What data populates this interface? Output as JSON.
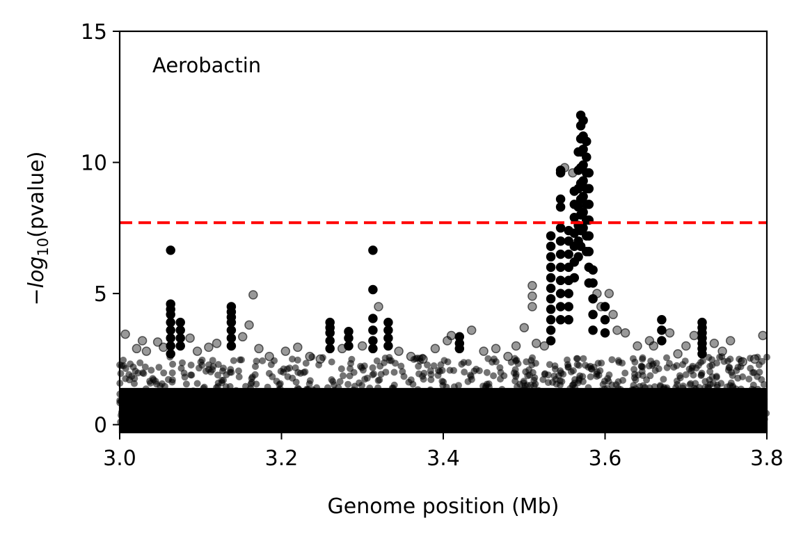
{
  "chart_data": {
    "type": "scatter",
    "title": "",
    "annotation": "Aerobactin",
    "xlabel": "Genome position (Mb)",
    "ylabel_prefix": "−log",
    "ylabel_subscript": "10",
    "ylabel_suffix": "(pvalue)",
    "xlim": [
      3.0,
      3.8
    ],
    "ylim": [
      -0.3,
      15
    ],
    "xticks": [
      3.0,
      3.2,
      3.4,
      3.6,
      3.8
    ],
    "xtick_labels": [
      "3.0",
      "3.2",
      "3.4",
      "3.6",
      "3.8"
    ],
    "yticks": [
      0,
      5,
      10,
      15
    ],
    "ytick_labels": [
      "0",
      "5",
      "10",
      "15"
    ],
    "grid": false,
    "marker_color": "#000000",
    "threshold": {
      "y": 7.7,
      "color": "#ff0000",
      "style": "dashed"
    },
    "series": [
      {
        "points": [
          [
            3.063,
            6.65
          ],
          [
            3.063,
            4.6
          ],
          [
            3.063,
            4.4
          ],
          [
            3.063,
            4.2
          ],
          [
            3.063,
            3.9
          ],
          [
            3.063,
            3.6
          ],
          [
            3.063,
            3.3
          ],
          [
            3.063,
            3.0
          ],
          [
            3.063,
            2.7
          ],
          [
            3.075,
            3.9
          ],
          [
            3.075,
            3.6
          ],
          [
            3.075,
            3.3
          ],
          [
            3.075,
            3.0
          ],
          [
            3.138,
            4.5
          ],
          [
            3.138,
            4.3
          ],
          [
            3.138,
            4.1
          ],
          [
            3.138,
            3.9
          ],
          [
            3.138,
            3.6
          ],
          [
            3.138,
            3.3
          ],
          [
            3.138,
            3.0
          ],
          [
            3.26,
            3.9
          ],
          [
            3.26,
            3.7
          ],
          [
            3.26,
            3.5
          ],
          [
            3.26,
            3.2
          ],
          [
            3.26,
            2.9
          ],
          [
            3.283,
            3.55
          ],
          [
            3.283,
            3.3
          ],
          [
            3.283,
            3.0
          ],
          [
            3.313,
            6.65
          ],
          [
            3.313,
            5.15
          ],
          [
            3.313,
            4.05
          ],
          [
            3.313,
            3.6
          ],
          [
            3.313,
            3.2
          ],
          [
            3.313,
            2.9
          ],
          [
            3.332,
            3.9
          ],
          [
            3.332,
            3.6
          ],
          [
            3.332,
            3.3
          ],
          [
            3.332,
            3.0
          ],
          [
            3.42,
            3.35
          ],
          [
            3.42,
            3.1
          ],
          [
            3.42,
            2.9
          ],
          [
            3.533,
            7.2
          ],
          [
            3.533,
            6.8
          ],
          [
            3.533,
            6.4
          ],
          [
            3.533,
            6.0
          ],
          [
            3.533,
            5.6
          ],
          [
            3.533,
            5.2
          ],
          [
            3.533,
            4.8
          ],
          [
            3.533,
            4.4
          ],
          [
            3.533,
            4.0
          ],
          [
            3.533,
            3.6
          ],
          [
            3.533,
            3.2
          ],
          [
            3.545,
            9.7
          ],
          [
            3.545,
            9.6
          ],
          [
            3.545,
            8.6
          ],
          [
            3.545,
            8.3
          ],
          [
            3.545,
            7.5
          ],
          [
            3.545,
            7.0
          ],
          [
            3.545,
            6.5
          ],
          [
            3.545,
            6.0
          ],
          [
            3.545,
            5.5
          ],
          [
            3.545,
            5.0
          ],
          [
            3.545,
            4.5
          ],
          [
            3.545,
            4.0
          ],
          [
            3.555,
            7.4
          ],
          [
            3.555,
            7.0
          ],
          [
            3.555,
            6.5
          ],
          [
            3.555,
            6.0
          ],
          [
            3.555,
            5.5
          ],
          [
            3.555,
            5.0
          ],
          [
            3.555,
            4.5
          ],
          [
            3.555,
            4.0
          ],
          [
            3.562,
            8.9
          ],
          [
            3.562,
            8.4
          ],
          [
            3.562,
            7.9
          ],
          [
            3.562,
            7.3
          ],
          [
            3.562,
            6.8
          ],
          [
            3.562,
            6.2
          ],
          [
            3.562,
            5.6
          ],
          [
            3.567,
            10.4
          ],
          [
            3.567,
            9.7
          ],
          [
            3.567,
            9.0
          ],
          [
            3.567,
            8.3
          ],
          [
            3.567,
            7.6
          ],
          [
            3.567,
            7.0
          ],
          [
            3.567,
            6.4
          ],
          [
            3.57,
            11.8
          ],
          [
            3.57,
            11.4
          ],
          [
            3.57,
            10.9
          ],
          [
            3.57,
            10.4
          ],
          [
            3.57,
            9.8
          ],
          [
            3.57,
            9.2
          ],
          [
            3.57,
            8.6
          ],
          [
            3.57,
            8.0
          ],
          [
            3.57,
            7.4
          ],
          [
            3.57,
            6.8
          ],
          [
            3.573,
            11.6
          ],
          [
            3.573,
            11.0
          ],
          [
            3.573,
            10.5
          ],
          [
            3.573,
            9.9
          ],
          [
            3.573,
            9.3
          ],
          [
            3.573,
            8.7
          ],
          [
            3.573,
            8.1
          ],
          [
            3.573,
            7.5
          ],
          [
            3.577,
            10.8
          ],
          [
            3.577,
            10.2
          ],
          [
            3.577,
            9.6
          ],
          [
            3.577,
            9.0
          ],
          [
            3.577,
            8.4
          ],
          [
            3.577,
            7.8
          ],
          [
            3.577,
            7.2
          ],
          [
            3.577,
            6.6
          ],
          [
            3.58,
            9.6
          ],
          [
            3.58,
            9.0
          ],
          [
            3.58,
            8.4
          ],
          [
            3.58,
            7.8
          ],
          [
            3.58,
            7.2
          ],
          [
            3.58,
            6.6
          ],
          [
            3.58,
            6.0
          ],
          [
            3.58,
            5.4
          ],
          [
            3.585,
            5.9
          ],
          [
            3.585,
            5.4
          ],
          [
            3.585,
            4.8
          ],
          [
            3.585,
            4.2
          ],
          [
            3.585,
            3.6
          ],
          [
            3.6,
            4.5
          ],
          [
            3.6,
            4.0
          ],
          [
            3.6,
            3.5
          ],
          [
            3.67,
            4.0
          ],
          [
            3.67,
            3.6
          ],
          [
            3.67,
            3.2
          ],
          [
            3.72,
            3.9
          ],
          [
            3.72,
            3.7
          ],
          [
            3.72,
            3.5
          ],
          [
            3.72,
            3.3
          ],
          [
            3.72,
            3.1
          ],
          [
            3.72,
            2.9
          ],
          [
            3.72,
            2.7
          ]
        ]
      },
      {
        "name": "",
        "opacity": 0.4,
        "points": [
          [
            3.007,
            3.45
          ],
          [
            3.021,
            2.9
          ],
          [
            3.028,
            3.2
          ],
          [
            3.033,
            2.8
          ],
          [
            3.047,
            3.15
          ],
          [
            3.054,
            2.95
          ],
          [
            3.087,
            3.3
          ],
          [
            3.096,
            2.8
          ],
          [
            3.11,
            2.95
          ],
          [
            3.12,
            3.1
          ],
          [
            3.152,
            3.35
          ],
          [
            3.16,
            3.8
          ],
          [
            3.165,
            4.95
          ],
          [
            3.172,
            2.9
          ],
          [
            3.185,
            2.6
          ],
          [
            3.205,
            2.8
          ],
          [
            3.22,
            2.95
          ],
          [
            3.235,
            2.6
          ],
          [
            3.248,
            2.5
          ],
          [
            3.275,
            2.9
          ],
          [
            3.3,
            3.0
          ],
          [
            3.32,
            4.5
          ],
          [
            3.345,
            2.8
          ],
          [
            3.36,
            2.6
          ],
          [
            3.375,
            2.5
          ],
          [
            3.39,
            2.9
          ],
          [
            3.405,
            3.2
          ],
          [
            3.41,
            3.4
          ],
          [
            3.435,
            3.6
          ],
          [
            3.45,
            2.8
          ],
          [
            3.465,
            2.9
          ],
          [
            3.48,
            2.6
          ],
          [
            3.49,
            3.0
          ],
          [
            3.5,
            3.7
          ],
          [
            3.51,
            5.3
          ],
          [
            3.51,
            4.9
          ],
          [
            3.51,
            4.5
          ],
          [
            3.515,
            3.1
          ],
          [
            3.525,
            3.0
          ],
          [
            3.55,
            9.8
          ],
          [
            3.56,
            9.6
          ],
          [
            3.59,
            5.0
          ],
          [
            3.595,
            4.5
          ],
          [
            3.605,
            5.0
          ],
          [
            3.61,
            4.2
          ],
          [
            3.615,
            3.6
          ],
          [
            3.625,
            3.5
          ],
          [
            3.64,
            3.0
          ],
          [
            3.655,
            3.2
          ],
          [
            3.66,
            3.0
          ],
          [
            3.68,
            3.5
          ],
          [
            3.69,
            2.7
          ],
          [
            3.7,
            3.0
          ],
          [
            3.71,
            3.4
          ],
          [
            3.735,
            3.1
          ],
          [
            3.745,
            2.8
          ],
          [
            3.755,
            3.2
          ],
          [
            3.77,
            2.4
          ],
          [
            3.785,
            2.5
          ],
          [
            3.795,
            3.4
          ],
          [
            3.575,
            0.2
          ],
          [
            3.583,
            0.5
          ],
          [
            3.565,
            0.1
          ]
        ]
      }
    ],
    "background_band": {
      "max_y": 2.6,
      "note": "dense overlapping points near baseline"
    }
  }
}
